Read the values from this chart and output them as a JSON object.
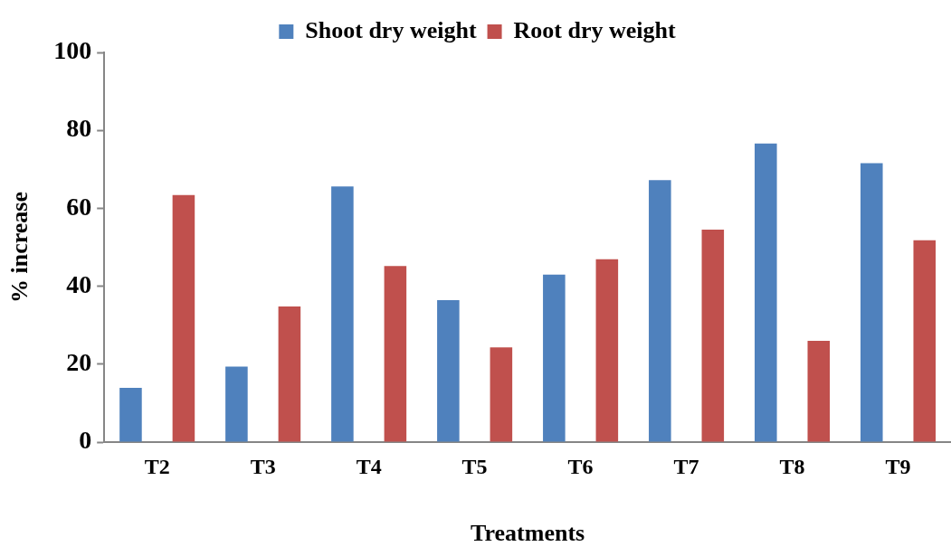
{
  "chart_data": {
    "type": "bar",
    "xlabel": "Treatments",
    "ylabel": "% increase",
    "categories": [
      "T2",
      "T3",
      "T4",
      "T5",
      "T6",
      "T7",
      "T8",
      "T9"
    ],
    "series": [
      {
        "name": "Shoot dry weight",
        "color": "#4f81bd",
        "values": [
          13.9,
          19.4,
          65.6,
          36.4,
          43.0,
          67.2,
          76.6,
          71.6
        ]
      },
      {
        "name": "Root dry weight",
        "color": "#c0504d",
        "values": [
          63.4,
          34.8,
          45.2,
          24.3,
          46.9,
          54.5,
          26.0,
          51.8
        ]
      }
    ],
    "ylim": [
      0,
      100
    ],
    "yticks": [
      0,
      20,
      40,
      60,
      80,
      100
    ],
    "grid": false,
    "legend": "top"
  }
}
